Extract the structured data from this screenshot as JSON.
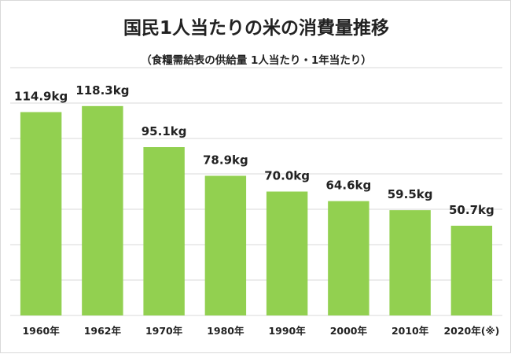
{
  "chart_data": {
    "type": "bar",
    "title": "国民1人当たりの米の消費量推移",
    "subtitle": "（食糧需給表の供給量 1人当たり・1年当たり）",
    "categories": [
      "1960年",
      "1962年",
      "1970年",
      "1980年",
      "1990年",
      "2000年",
      "2010年",
      "2020年(※)"
    ],
    "values": [
      114.9,
      118.3,
      95.1,
      78.9,
      70.0,
      64.6,
      59.5,
      50.7
    ],
    "data_labels": [
      "114.9kg",
      "118.3kg",
      "95.1kg",
      "78.9kg",
      "70.0kg",
      "64.6kg",
      "59.5kg",
      "50.7kg"
    ],
    "unit": "kg",
    "ylim": [
      0,
      140
    ],
    "grid": true,
    "bar_color": "#92d050",
    "grid_color": "#d9d9d9"
  }
}
